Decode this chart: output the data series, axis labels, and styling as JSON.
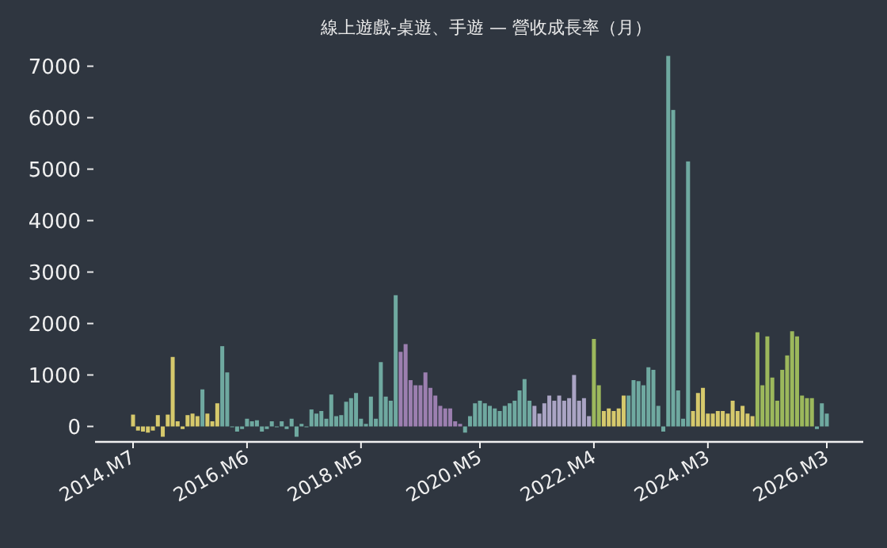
{
  "chart_data": {
    "type": "bar",
    "title": "線上遊戲-桌遊、手遊 — 營收成長率（月）",
    "categories": [
      "2014.M7",
      null,
      null,
      null,
      null,
      null,
      null,
      null,
      null,
      null,
      null,
      null,
      null,
      null,
      null,
      null,
      null,
      null,
      null,
      null,
      null,
      null,
      null,
      "2016.M6",
      null,
      null,
      null,
      null,
      null,
      null,
      null,
      null,
      null,
      null,
      null,
      null,
      null,
      null,
      null,
      null,
      null,
      null,
      null,
      null,
      null,
      null,
      "2018.M5",
      null,
      null,
      null,
      null,
      null,
      null,
      null,
      null,
      null,
      null,
      null,
      null,
      null,
      null,
      null,
      null,
      null,
      null,
      null,
      null,
      null,
      null,
      null,
      "2020.M5",
      null,
      null,
      null,
      null,
      null,
      null,
      null,
      null,
      null,
      null,
      null,
      null,
      null,
      null,
      null,
      null,
      null,
      null,
      null,
      null,
      null,
      null,
      "2022.M4",
      null,
      null,
      null,
      null,
      null,
      null,
      null,
      null,
      null,
      null,
      null,
      null,
      null,
      null,
      null,
      null,
      null,
      null,
      null,
      null,
      null,
      null,
      "2024.M3",
      null,
      null,
      null,
      null,
      null,
      null,
      null,
      null,
      null,
      null,
      null,
      null,
      null,
      null,
      null,
      null,
      null,
      null,
      null,
      null,
      null,
      null,
      null,
      "2026.M3"
    ],
    "values": [
      230,
      -80,
      -100,
      -120,
      -80,
      220,
      -200,
      230,
      1350,
      100,
      -50,
      220,
      250,
      200,
      720,
      250,
      100,
      450,
      1560,
      1050,
      0,
      -100,
      -50,
      150,
      100,
      120,
      -100,
      -50,
      100,
      0,
      100,
      -50,
      150,
      -200,
      50,
      0,
      330,
      250,
      300,
      150,
      620,
      200,
      220,
      480,
      550,
      650,
      150,
      50,
      580,
      150,
      1250,
      580,
      500,
      2550,
      1450,
      1600,
      900,
      800,
      800,
      1050,
      750,
      600,
      400,
      350,
      350,
      100,
      50,
      -120,
      200,
      450,
      500,
      450,
      400,
      350,
      300,
      400,
      450,
      500,
      700,
      920,
      500,
      400,
      250,
      450,
      600,
      500,
      600,
      500,
      550,
      1000,
      500,
      550,
      200,
      1700,
      800,
      300,
      350,
      300,
      350,
      600,
      600,
      900,
      880,
      800,
      1150,
      1100,
      400,
      -100,
      7200,
      6150,
      700,
      150,
      5150,
      300,
      650,
      750,
      250,
      250,
      300,
      300,
      250,
      500,
      300,
      400,
      250,
      200,
      1830,
      800,
      1750,
      950,
      500,
      1100,
      1380,
      1850,
      1750,
      600,
      550,
      550,
      -50,
      450,
      250
    ],
    "colors": [
      "#d6c96c",
      "#d6c96c",
      "#d6c96c",
      "#d6c96c",
      "#d6c96c",
      "#d6c96c",
      "#d6c96c",
      "#d6c96c",
      "#d6c96c",
      "#d6c96c",
      "#d6c96c",
      "#d6c96c",
      "#d6c96c",
      "#d6c96c",
      "#6fa9a0",
      "#d6c96c",
      "#d6c96c",
      "#d6c96c",
      "#6fa9a0",
      "#6fa9a0",
      "#6fa9a0",
      "#6fa9a0",
      "#6fa9a0",
      "#6fa9a0",
      "#6fa9a0",
      "#6fa9a0",
      "#6fa9a0",
      "#6fa9a0",
      "#6fa9a0",
      "#6fa9a0",
      "#6fa9a0",
      "#6fa9a0",
      "#6fa9a0",
      "#6fa9a0",
      "#6fa9a0",
      "#6fa9a0",
      "#6fa9a0",
      "#6fa9a0",
      "#6fa9a0",
      "#6fa9a0",
      "#6fa9a0",
      "#6fa9a0",
      "#6fa9a0",
      "#6fa9a0",
      "#6fa9a0",
      "#6fa9a0",
      "#6fa9a0",
      "#6fa9a0",
      "#6fa9a0",
      "#6fa9a0",
      "#6fa9a0",
      "#6fa9a0",
      "#6fa9a0",
      "#6fa9a0",
      "#9c7fb0",
      "#9c7fb0",
      "#9c7fb0",
      "#9c7fb0",
      "#9c7fb0",
      "#9c7fb0",
      "#9c7fb0",
      "#9c7fb0",
      "#9c7fb0",
      "#9c7fb0",
      "#9c7fb0",
      "#9c7fb0",
      "#9c7fb0",
      "#6fa9a0",
      "#6fa9a0",
      "#6fa9a0",
      "#6fa9a0",
      "#6fa9a0",
      "#6fa9a0",
      "#6fa9a0",
      "#6fa9a0",
      "#6fa9a0",
      "#6fa9a0",
      "#6fa9a0",
      "#6fa9a0",
      "#6fa9a0",
      "#6fa9a0",
      "#aaa4c4",
      "#aaa4c4",
      "#aaa4c4",
      "#aaa4c4",
      "#aaa4c4",
      "#aaa4c4",
      "#aaa4c4",
      "#aaa4c4",
      "#aaa4c4",
      "#aaa4c4",
      "#aaa4c4",
      "#aaa4c4",
      "#9cb85c",
      "#9cb85c",
      "#d6c96c",
      "#d6c96c",
      "#d6c96c",
      "#d6c96c",
      "#d6c96c",
      "#6fa9a0",
      "#6fa9a0",
      "#6fa9a0",
      "#6fa9a0",
      "#6fa9a0",
      "#6fa9a0",
      "#6fa9a0",
      "#6fa9a0",
      "#6fa9a0",
      "#6fa9a0",
      "#6fa9a0",
      "#6fa9a0",
      "#6fa9a0",
      "#d6c96c",
      "#d6c96c",
      "#d6c96c",
      "#d6c96c",
      "#d6c96c",
      "#d6c96c",
      "#d6c96c",
      "#d6c96c",
      "#d6c96c",
      "#d6c96c",
      "#d6c96c",
      "#d6c96c",
      "#d6c96c",
      "#9cb85c",
      "#9cb85c",
      "#9cb85c",
      "#9cb85c",
      "#9cb85c",
      "#9cb85c",
      "#9cb85c",
      "#9cb85c",
      "#9cb85c",
      "#9cb85c",
      "#9cb85c",
      "#9cb85c",
      "#6fa9a0",
      "#6fa9a0",
      "#6fa9a0"
    ],
    "ylim": [
      -300,
      7200
    ],
    "yticks": [
      0,
      1000,
      2000,
      3000,
      4000,
      5000,
      6000,
      7000
    ]
  }
}
